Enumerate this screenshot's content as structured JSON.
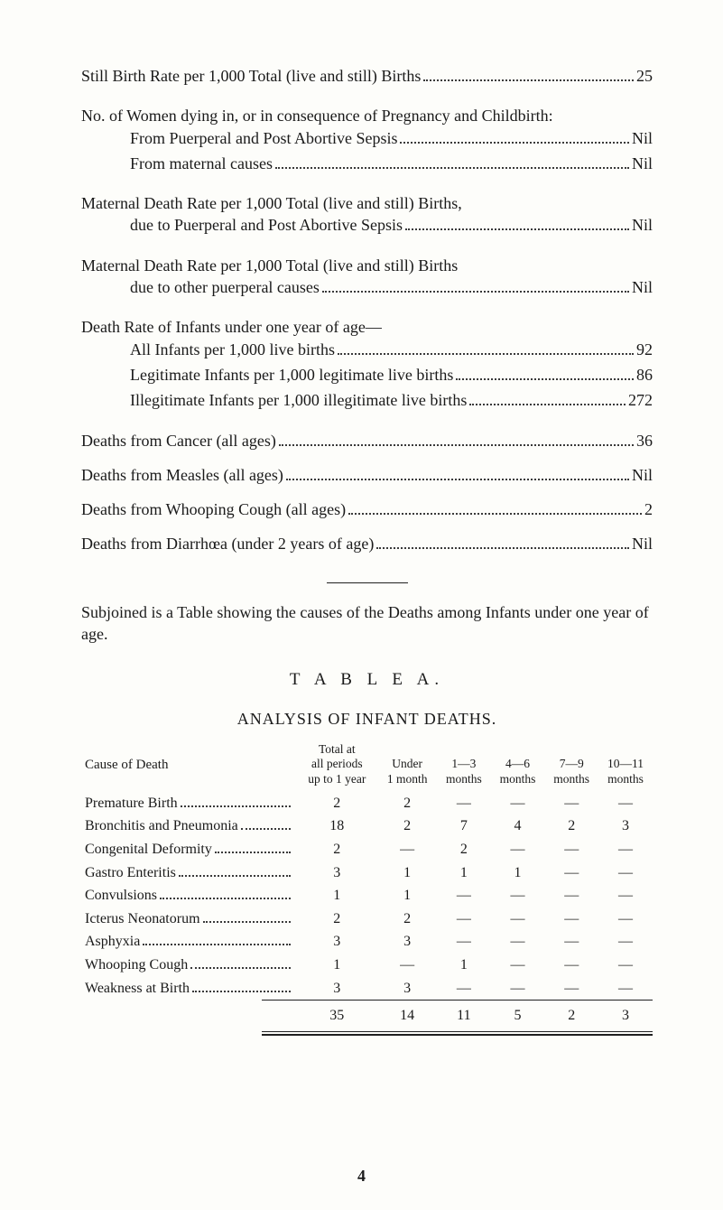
{
  "stats": {
    "still_birth": {
      "label": "Still Birth Rate per 1,000 Total (live and still) Births",
      "value": "25"
    },
    "women_dying_intro": "No. of Women dying in, or in consequence of Pregnancy and Childbirth:",
    "women_dying": [
      {
        "label": "From Puerperal and Post Abortive Sepsis",
        "value": "Nil"
      },
      {
        "label": "From maternal causes",
        "value": "Nil"
      }
    ],
    "maternal_rate_a_intro": "Maternal Death Rate per 1,000 Total (live and still) Births,",
    "maternal_rate_a": {
      "label": "due to Puerperal and Post Abortive Sepsis",
      "value": "Nil"
    },
    "maternal_rate_b_intro": "Maternal Death Rate per 1,000 Total (live and still) Births",
    "maternal_rate_b": {
      "label": "due to other puerperal causes",
      "value": "Nil"
    },
    "infant_rate_intro": "Death Rate of Infants under one year of age—",
    "infant_rates": [
      {
        "label": "All Infants per 1,000 live births",
        "value": "92"
      },
      {
        "label": "Legitimate Infants per 1,000 legitimate live births",
        "value": "86"
      },
      {
        "label": "Illegitimate Infants per 1,000 illegitimate live births",
        "value": "272"
      }
    ],
    "deaths_lines": [
      {
        "label": "Deaths from Cancer (all ages)",
        "value": "36"
      },
      {
        "label": "Deaths from Measles (all ages)",
        "value": "Nil"
      },
      {
        "label": "Deaths from Whooping Cough (all ages)",
        "value": "2"
      },
      {
        "label": "Deaths from Diarrhœa (under 2 years of age)",
        "value": "Nil"
      }
    ]
  },
  "subjoined": "Subjoined is a Table showing the causes of the Deaths among Infants under one year of age.",
  "table": {
    "title": "T A B L E   A.",
    "subtitle": "ANALYSIS OF INFANT DEATHS.",
    "headers": {
      "cause": "Cause of Death",
      "total": "Total at\nall periods\nup to 1 year",
      "c1": "Under\n1 month",
      "c2": "1—3\nmonths",
      "c3": "4—6\nmonths",
      "c4": "7—9\nmonths",
      "c5": "10—11\nmonths"
    },
    "rows": [
      {
        "cause": "Premature Birth",
        "v": [
          "2",
          "2",
          "—",
          "—",
          "—",
          "—"
        ]
      },
      {
        "cause": "Bronchitis and Pneumonia",
        "v": [
          "18",
          "2",
          "7",
          "4",
          "2",
          "3"
        ]
      },
      {
        "cause": "Congenital Deformity",
        "v": [
          "2",
          "—",
          "2",
          "—",
          "—",
          "—"
        ]
      },
      {
        "cause": "Gastro Enteritis",
        "v": [
          "3",
          "1",
          "1",
          "1",
          "—",
          "—"
        ]
      },
      {
        "cause": "Convulsions",
        "v": [
          "1",
          "1",
          "—",
          "—",
          "—",
          "—"
        ]
      },
      {
        "cause": "Icterus Neonatorum",
        "v": [
          "2",
          "2",
          "—",
          "—",
          "—",
          "—"
        ]
      },
      {
        "cause": "Asphyxia",
        "v": [
          "3",
          "3",
          "—",
          "—",
          "—",
          "—"
        ]
      },
      {
        "cause": "Whooping Cough",
        "v": [
          "1",
          "—",
          "1",
          "—",
          "—",
          "—"
        ]
      },
      {
        "cause": "Weakness at Birth",
        "v": [
          "3",
          "3",
          "—",
          "—",
          "—",
          "—"
        ]
      }
    ],
    "totals": [
      "35",
      "14",
      "11",
      "5",
      "2",
      "3"
    ]
  },
  "page_number": "4"
}
